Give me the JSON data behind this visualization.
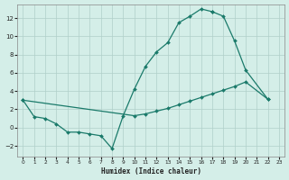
{
  "xlabel": "Humidex (Indice chaleur)",
  "bg_color": "#d4eee8",
  "grid_color": "#b0cfc9",
  "line_color": "#1a7a6a",
  "ylim": [
    -3.2,
    13.5
  ],
  "xlim": [
    -0.5,
    23.5
  ],
  "yticks": [
    -2,
    0,
    2,
    4,
    6,
    8,
    10,
    12
  ],
  "xticks": [
    0,
    1,
    2,
    3,
    4,
    5,
    6,
    7,
    8,
    9,
    10,
    11,
    12,
    13,
    14,
    15,
    16,
    17,
    18,
    19,
    20,
    21,
    22,
    23
  ],
  "curve_zigzag_x": [
    0,
    1,
    2,
    3,
    4,
    5,
    6,
    7,
    8,
    9,
    10,
    11,
    12,
    13,
    14,
    15,
    16,
    17
  ],
  "curve_zigzag_y": [
    3.0,
    1.2,
    1.0,
    0.4,
    -0.5,
    -0.5,
    -0.7,
    -0.9,
    -2.3,
    1.3,
    4.2,
    6.7,
    8.3,
    9.3,
    11.5,
    12.2,
    13.0,
    12.7
  ],
  "curve_upper_desc_x": [
    17,
    18,
    19,
    20,
    22
  ],
  "curve_upper_desc_y": [
    12.7,
    12.2,
    9.5,
    6.3,
    3.1
  ],
  "curve_lower_diag_x": [
    0,
    10,
    11,
    12,
    13,
    14,
    15,
    16,
    17,
    18,
    19,
    20,
    22
  ],
  "curve_lower_diag_y": [
    3.0,
    1.3,
    1.5,
    1.8,
    2.1,
    2.5,
    2.9,
    3.3,
    3.7,
    4.1,
    4.5,
    5.0,
    3.1
  ]
}
